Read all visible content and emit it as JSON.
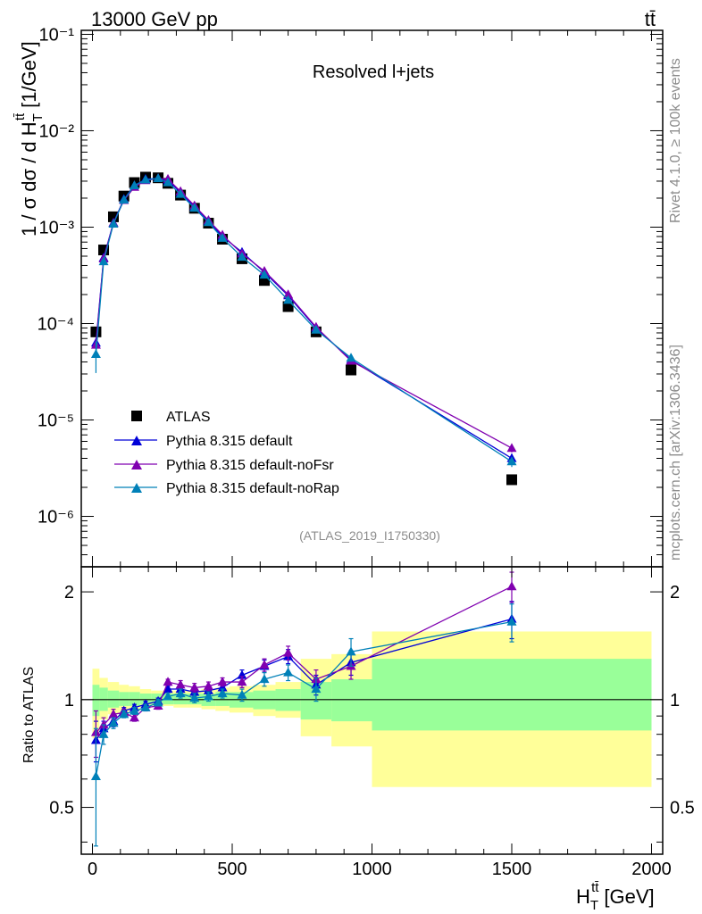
{
  "header": {
    "energy_label": "13000 GeV pp",
    "process_label": "tt̄"
  },
  "side_text": {
    "rivet": "Rivet 4.1.0, ≥ 100k events",
    "mcplots": "mcplots.cern.ch [arXiv:1306.3436]"
  },
  "chart_data": {
    "type": "scatter",
    "title": "Resolved l+jets",
    "analysis_id": "(ATLAS_2019_I1750330)",
    "xlabel": "H_T^{tt̄} [GeV]",
    "xlabel_main": "H",
    "xlabel_sub": "T",
    "xlabel_sup": "tt̄",
    "xlabel_unit": "[GeV]",
    "ylabel": "1 / σ dσ / d H_T^{tt̄} [1/GeV]",
    "ylabel_main": "1 / σ dσ / d H",
    "ylabel_sub": "T",
    "ylabel_sup": "tt̄",
    "ylabel_unit": "[1/GeV]",
    "ratio_ylabel": "Ratio to ATLAS",
    "xlim": [
      -40,
      2040
    ],
    "ylim": [
      3e-07,
      0.11
    ],
    "ratio_ylim": [
      0.37,
      2.35
    ],
    "yscale": "log",
    "x_ticks": [
      "0",
      "500",
      "1000",
      "1500",
      "2000"
    ],
    "y_tick_labels": [
      "10⁻⁶",
      "10⁻⁵",
      "10⁻⁴",
      "10⁻³",
      "10⁻²",
      "10⁻¹"
    ],
    "ratio_tick_labels": [
      "0.5",
      "1",
      "2"
    ],
    "legend_position": "bottom-left",
    "x": [
      12.5,
      40,
      75,
      112.5,
      150,
      190,
      235,
      270,
      315,
      365,
      415,
      465,
      535,
      615,
      700,
      800,
      925,
      1500
    ],
    "bin_edges": [
      0,
      25,
      55,
      95,
      130,
      170,
      210,
      250,
      290,
      340,
      390,
      440,
      490,
      575,
      655,
      745,
      855,
      1000,
      2000
    ],
    "band_outer_upper": [
      1.22,
      1.15,
      1.12,
      1.1,
      1.09,
      1.07,
      1.06,
      1.06,
      1.06,
      1.06,
      1.07,
      1.08,
      1.09,
      1.1,
      1.12,
      1.3,
      1.34,
      1.55
    ],
    "band_outer_lower": [
      0.78,
      0.88,
      0.91,
      0.92,
      0.93,
      0.95,
      0.96,
      0.96,
      0.95,
      0.95,
      0.94,
      0.93,
      0.92,
      0.9,
      0.89,
      0.79,
      0.74,
      0.57
    ],
    "band_inner_upper": [
      1.1,
      1.08,
      1.06,
      1.05,
      1.05,
      1.04,
      1.04,
      1.04,
      1.04,
      1.04,
      1.04,
      1.05,
      1.05,
      1.06,
      1.07,
      1.12,
      1.14,
      1.3
    ],
    "band_inner_lower": [
      0.9,
      0.93,
      0.95,
      0.96,
      0.96,
      0.97,
      0.97,
      0.97,
      0.97,
      0.97,
      0.96,
      0.96,
      0.95,
      0.94,
      0.93,
      0.88,
      0.87,
      0.82
    ],
    "series": [
      {
        "name": "ATLAS",
        "marker": "square",
        "color": "#000000",
        "values": [
          8.2e-05,
          0.00058,
          0.00128,
          0.0021,
          0.0029,
          0.0033,
          0.00325,
          0.00285,
          0.00215,
          0.00157,
          0.0011,
          0.00075,
          0.00047,
          0.00028,
          0.00015,
          8.2e-05,
          3.3e-05,
          2.4e-06
        ]
      },
      {
        "name": "Pythia 8.315 default",
        "marker": "triangle",
        "color": "#0000d8",
        "values": [
          6.3e-05,
          0.00048,
          0.00111,
          0.00195,
          0.0027,
          0.00315,
          0.0032,
          0.00305,
          0.0023,
          0.00162,
          0.00115,
          0.0008,
          0.00055,
          0.00034,
          0.000195,
          9e-05,
          4.2e-05,
          4e-06
        ],
        "ratio": [
          0.77,
          0.83,
          0.87,
          0.93,
          0.95,
          0.97,
          0.99,
          1.07,
          1.07,
          1.05,
          1.06,
          1.08,
          1.17,
          1.24,
          1.32,
          1.1,
          1.27,
          1.68
        ],
        "ratio_err": [
          0.1,
          0.04,
          0.03,
          0.02,
          0.02,
          0.02,
          0.02,
          0.02,
          0.03,
          0.03,
          0.03,
          0.03,
          0.04,
          0.05,
          0.06,
          0.07,
          0.1,
          0.2
        ]
      },
      {
        "name": "Pythia 8.315 default-noFsr",
        "marker": "triangle",
        "color": "#8000b0",
        "values": [
          6e-05,
          0.00047,
          0.0011,
          0.0019,
          0.0026,
          0.00305,
          0.0032,
          0.00315,
          0.00235,
          0.00167,
          0.00118,
          0.00083,
          0.00053,
          0.00035,
          0.0002,
          9.2e-05,
          4.1e-05,
          5.1e-06
        ],
        "ratio": [
          0.81,
          0.85,
          0.91,
          0.92,
          0.89,
          0.95,
          0.96,
          1.12,
          1.1,
          1.08,
          1.09,
          1.12,
          1.12,
          1.25,
          1.35,
          1.14,
          1.24,
          2.07
        ],
        "ratio_err": [
          0.12,
          0.04,
          0.03,
          0.02,
          0.02,
          0.02,
          0.02,
          0.02,
          0.03,
          0.03,
          0.03,
          0.03,
          0.04,
          0.05,
          0.06,
          0.07,
          0.1,
          0.2
        ]
      },
      {
        "name": "Pythia 8.315 default-noRap",
        "marker": "triangle",
        "color": "#0080b8",
        "values": [
          4.8e-05,
          0.00044,
          0.00108,
          0.00192,
          0.0027,
          0.0031,
          0.0032,
          0.0029,
          0.0022,
          0.00158,
          0.00112,
          0.00077,
          0.00049,
          0.00032,
          0.000175,
          8.6e-05,
          4.4e-05,
          3.7e-06
        ],
        "ratio": [
          0.61,
          0.8,
          0.86,
          0.91,
          0.93,
          0.95,
          0.98,
          1.02,
          1.04,
          1.01,
          1.02,
          1.04,
          1.03,
          1.14,
          1.19,
          1.07,
          1.36,
          1.65
        ],
        "ratio_err": [
          0.22,
          0.05,
          0.03,
          0.02,
          0.02,
          0.02,
          0.02,
          0.02,
          0.03,
          0.03,
          0.03,
          0.03,
          0.04,
          0.05,
          0.06,
          0.08,
          0.12,
          0.2
        ]
      }
    ]
  }
}
